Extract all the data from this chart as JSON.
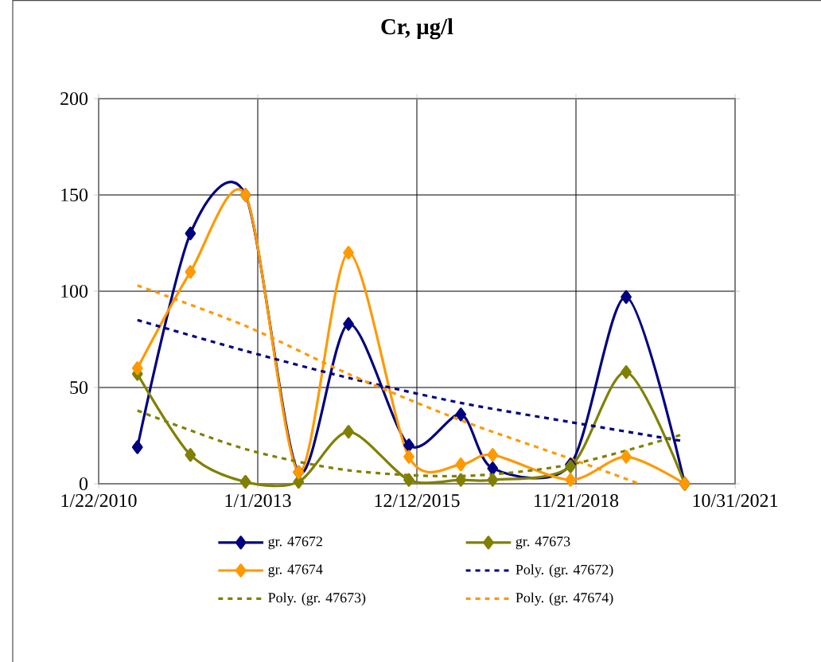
{
  "chart_data": {
    "type": "line",
    "title": "Cr, µg/l",
    "x": [
      "2010-10-11",
      "2011-10-04",
      "2012-10-10",
      "2013-10-04",
      "2014-09-06",
      "2015-10-19",
      "2016-10-04",
      "2017-05-07",
      "2018-10-15",
      "2019-10-26",
      "2020-11-25"
    ],
    "series": [
      {
        "name": "gr. 47672",
        "color": "#000080",
        "marker": "diamond",
        "line_style": "solid",
        "values": [
          19,
          130,
          150,
          6,
          83,
          20,
          36,
          8,
          10,
          97,
          0
        ]
      },
      {
        "name": "gr. 47673",
        "color": "#808000",
        "marker": "diamond",
        "line_style": "solid",
        "values": [
          57,
          15,
          1,
          1,
          27,
          2,
          2,
          2,
          9,
          58,
          0
        ]
      },
      {
        "name": "gr. 47674",
        "color": "#ff9900",
        "marker": "diamond",
        "line_style": "solid",
        "values": [
          60,
          110,
          150,
          6,
          120,
          14,
          10,
          15,
          2,
          14,
          0
        ]
      },
      {
        "name": "Poly. (gr. 47672)",
        "color": "#000080",
        "marker": "none",
        "line_style": "dashed",
        "x": [
          "2010-10-11",
          "2012-10-10",
          "2014-09-06",
          "2016-10-04",
          "2018-10-15",
          "2020-11-25"
        ],
        "values": [
          85,
          69,
          55,
          42,
          32,
          22
        ]
      },
      {
        "name": "Poly. (gr. 47673)",
        "color": "#808000",
        "marker": "none",
        "line_style": "dashed",
        "x": [
          "2010-10-11",
          "2012-10-10",
          "2014-09-06",
          "2016-10-04",
          "2018-10-15",
          "2020-11-25"
        ],
        "values": [
          38,
          18,
          7,
          4,
          10,
          26
        ]
      },
      {
        "name": "Poly. (gr. 47674)",
        "color": "#ff9900",
        "marker": "none",
        "line_style": "dashed",
        "x": [
          "2010-10-11",
          "2012-10-10",
          "2014-09-06",
          "2016-10-04",
          "2018-10-15",
          "2020-01-24"
        ],
        "values": [
          103,
          82,
          57,
          33,
          13,
          0
        ]
      }
    ],
    "xlim": [
      "2010-01-22",
      "2021-10-31"
    ],
    "xticks": [
      {
        "value": "2010-01-22",
        "label": "1/22/2010"
      },
      {
        "value": "2013-01-01",
        "label": "1/1/2013"
      },
      {
        "value": "2015-12-12",
        "label": "12/12/2015"
      },
      {
        "value": "2018-11-21",
        "label": "11/21/2018"
      },
      {
        "value": "2021-10-31",
        "label": "10/31/2021"
      }
    ],
    "ylim": [
      0,
      200
    ],
    "yticks": [
      0,
      50,
      100,
      150,
      200
    ],
    "grid": true,
    "legend": "bottom"
  }
}
